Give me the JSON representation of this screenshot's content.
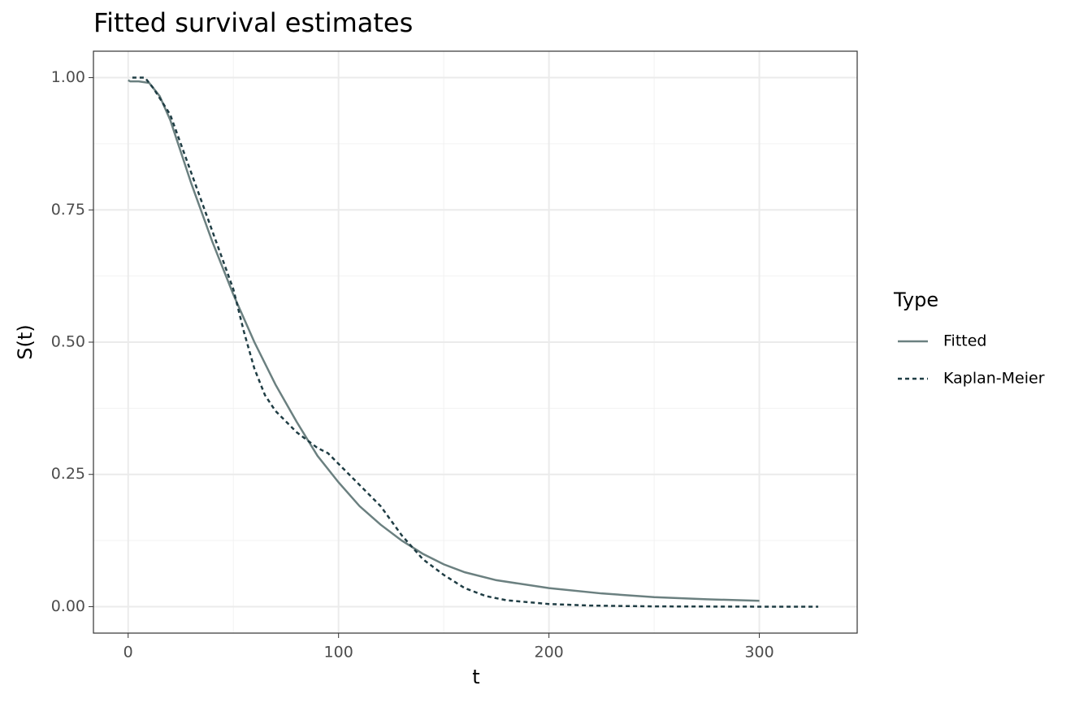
{
  "chart_data": {
    "type": "line",
    "title": "Fitted survival estimates",
    "x_label": "t",
    "y_label": "S(t)",
    "legend_title": "Type",
    "legend_position": "right",
    "grid": true,
    "xlim": [
      -16.5,
      346.5
    ],
    "ylim": [
      -0.05,
      1.05
    ],
    "xticks": [
      0,
      100,
      200,
      300
    ],
    "x_minor_ticks": [
      50,
      150,
      250
    ],
    "yticks": [
      {
        "value": 0,
        "label": "0.00"
      },
      {
        "value": 0.25,
        "label": "0.25"
      },
      {
        "value": 0.5,
        "label": "0.50"
      },
      {
        "value": 0.75,
        "label": "0.75"
      },
      {
        "value": 1,
        "label": "1.00"
      }
    ],
    "y_minor_ticks": [
      0.125,
      0.375,
      0.625,
      0.875
    ],
    "series": [
      {
        "name": "Fitted",
        "color": "#6b8080",
        "dash": "solid",
        "x": [
          0,
          1,
          5,
          10,
          15,
          20,
          30,
          40,
          50,
          60,
          70,
          80,
          90,
          100,
          110,
          120,
          130,
          140,
          150,
          160,
          175,
          200,
          225,
          250,
          275,
          300
        ],
        "values": [
          0.995,
          0.993,
          0.993,
          0.99,
          0.965,
          0.92,
          0.8,
          0.69,
          0.59,
          0.5,
          0.42,
          0.35,
          0.285,
          0.235,
          0.19,
          0.155,
          0.125,
          0.1,
          0.08,
          0.065,
          0.05,
          0.035,
          0.025,
          0.018,
          0.014,
          0.011
        ]
      },
      {
        "name": "Kaplan-Meier",
        "color": "#1f3d44",
        "dash": "dashed",
        "x": [
          2,
          8,
          12,
          20,
          30,
          40,
          50,
          55,
          60,
          65,
          70,
          80,
          90,
          95,
          100,
          110,
          120,
          130,
          140,
          150,
          160,
          170,
          180,
          200,
          220,
          250,
          300,
          328
        ],
        "values": [
          1.0,
          1.0,
          0.98,
          0.93,
          0.82,
          0.71,
          0.6,
          0.52,
          0.45,
          0.4,
          0.37,
          0.33,
          0.3,
          0.29,
          0.27,
          0.23,
          0.19,
          0.135,
          0.09,
          0.06,
          0.035,
          0.02,
          0.012,
          0.005,
          0.002,
          0.0005,
          0,
          0
        ]
      }
    ]
  }
}
